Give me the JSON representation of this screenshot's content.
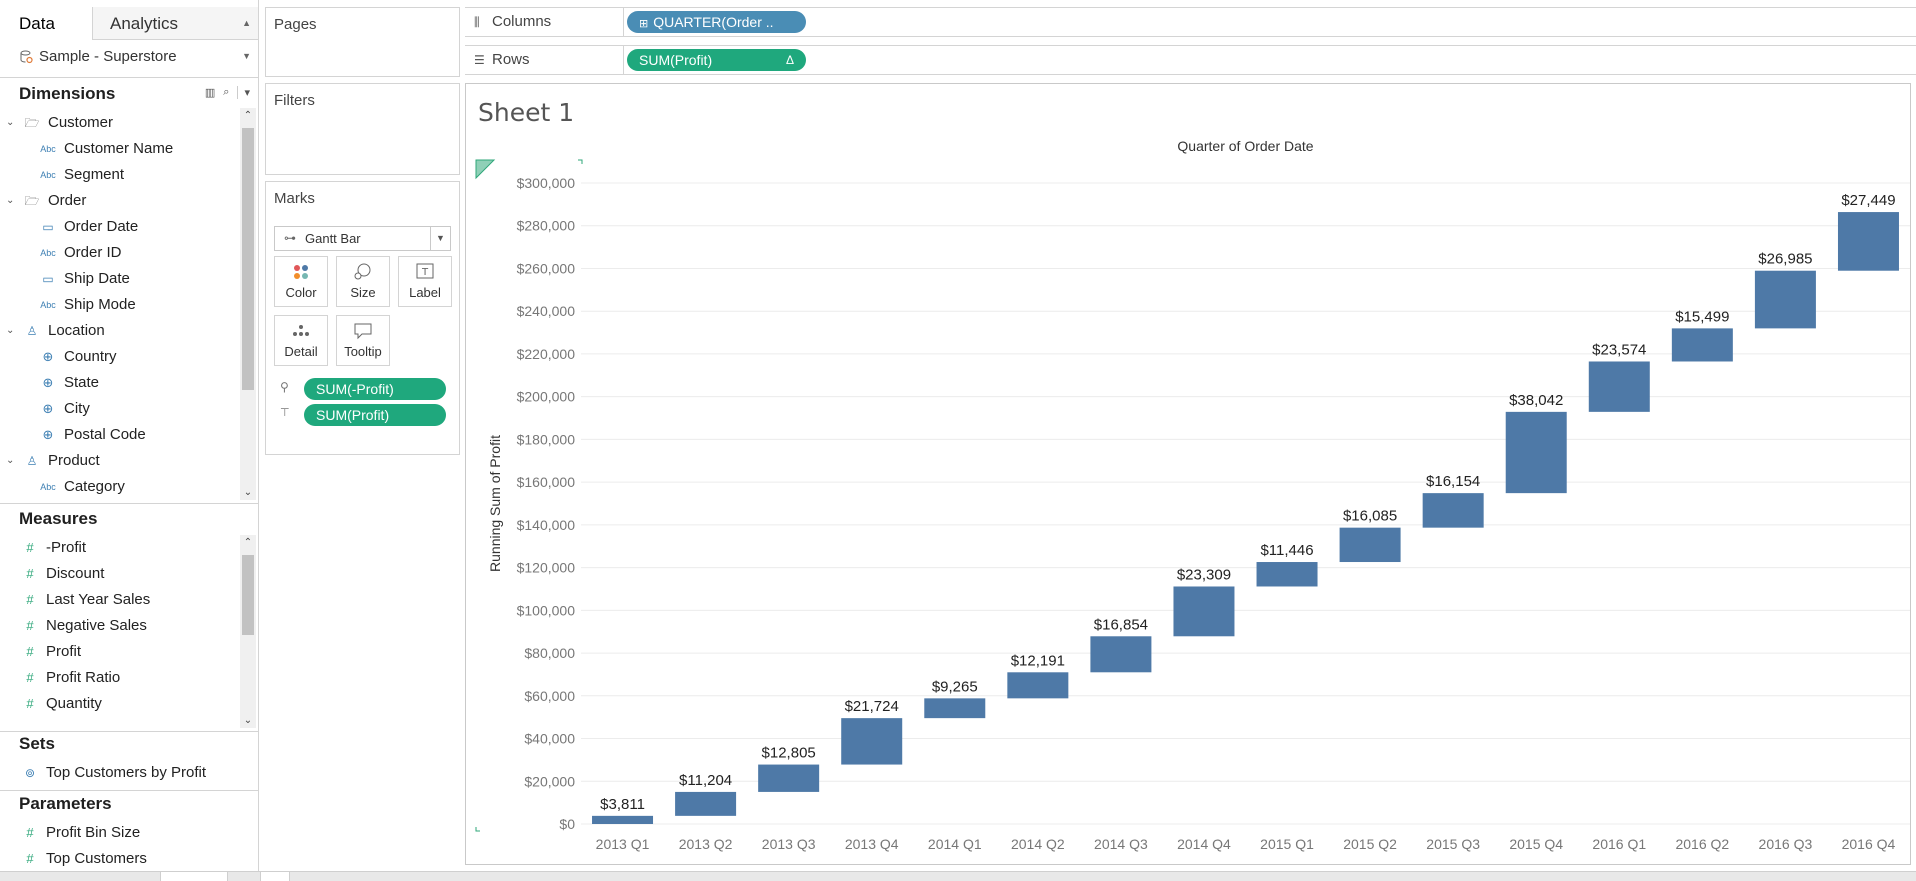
{
  "tabs": {
    "data": "Data",
    "analytics": "Analytics"
  },
  "datasource": "Sample - Superstore",
  "dimensions": {
    "title": "Dimensions",
    "fields": [
      {
        "label": "Customer",
        "type": "folder"
      },
      {
        "label": "Customer Name",
        "type": "string"
      },
      {
        "label": "Segment",
        "type": "string"
      },
      {
        "label": "Order",
        "type": "folder"
      },
      {
        "label": "Order Date",
        "type": "date"
      },
      {
        "label": "Order ID",
        "type": "string"
      },
      {
        "label": "Ship Date",
        "type": "date"
      },
      {
        "label": "Ship Mode",
        "type": "string"
      },
      {
        "label": "Location",
        "type": "hierarchy"
      },
      {
        "label": "Country",
        "type": "geo"
      },
      {
        "label": "State",
        "type": "geo"
      },
      {
        "label": "City",
        "type": "geo"
      },
      {
        "label": "Postal Code",
        "type": "geo"
      },
      {
        "label": "Product",
        "type": "hierarchy"
      },
      {
        "label": "Category",
        "type": "string"
      }
    ]
  },
  "measures": {
    "title": "Measures",
    "fields": [
      "-Profit",
      "Discount",
      "Last Year Sales",
      "Negative Sales",
      "Profit",
      "Profit Ratio",
      "Quantity"
    ]
  },
  "sets": {
    "title": "Sets",
    "fields": [
      "Top Customers by Profit"
    ]
  },
  "parameters": {
    "title": "Parameters",
    "fields": [
      "Profit Bin Size",
      "Top Customers"
    ]
  },
  "cards": {
    "pages": "Pages",
    "filters": "Filters",
    "marks": "Marks"
  },
  "marks": {
    "type": "Gantt Bar",
    "buttons": [
      "Color",
      "Size",
      "Label",
      "Detail",
      "Tooltip"
    ],
    "pills": [
      "SUM(-Profit)",
      "SUM(Profit)"
    ]
  },
  "shelves": {
    "columns_label": "Columns",
    "columns_pill": "QUARTER(Order ..",
    "rows_label": "Rows",
    "rows_pill": "SUM(Profit)",
    "rows_pill_badge": "Δ"
  },
  "sheet_title": "Sheet 1",
  "colors": {
    "bar": "#4e79a7",
    "green_pill": "#1fa87d",
    "blue_pill": "#4a8db5"
  },
  "chart_data": {
    "type": "bar",
    "subtype": "waterfall",
    "title": "Quarter of Order Date",
    "xlabel": "Quarter of Order Date",
    "ylabel": "Running Sum of Profit",
    "ylim": [
      0,
      300000
    ],
    "yticks": [
      "$0",
      "$20,000",
      "$40,000",
      "$60,000",
      "$80,000",
      "$100,000",
      "$120,000",
      "$140,000",
      "$160,000",
      "$180,000",
      "$200,000",
      "$220,000",
      "$240,000",
      "$260,000",
      "$280,000",
      "$300,000"
    ],
    "categories": [
      "2013 Q1",
      "2013 Q2",
      "2013 Q3",
      "2013 Q4",
      "2014 Q1",
      "2014 Q2",
      "2014 Q3",
      "2014 Q4",
      "2015 Q1",
      "2015 Q2",
      "2015 Q3",
      "2015 Q4",
      "2016 Q1",
      "2016 Q2",
      "2016 Q3",
      "2016 Q4"
    ],
    "values": [
      3811,
      11204,
      12805,
      21724,
      9265,
      12191,
      16854,
      23309,
      11446,
      16085,
      16154,
      38042,
      23574,
      15499,
      26985,
      27449
    ],
    "labels": [
      "$3,811",
      "$11,204",
      "$12,805",
      "$21,724",
      "$9,265",
      "$12,191",
      "$16,854",
      "$23,309",
      "$11,446",
      "$16,085",
      "$16,154",
      "$38,042",
      "$23,574",
      "$15,499",
      "$26,985",
      "$27,449"
    ]
  }
}
